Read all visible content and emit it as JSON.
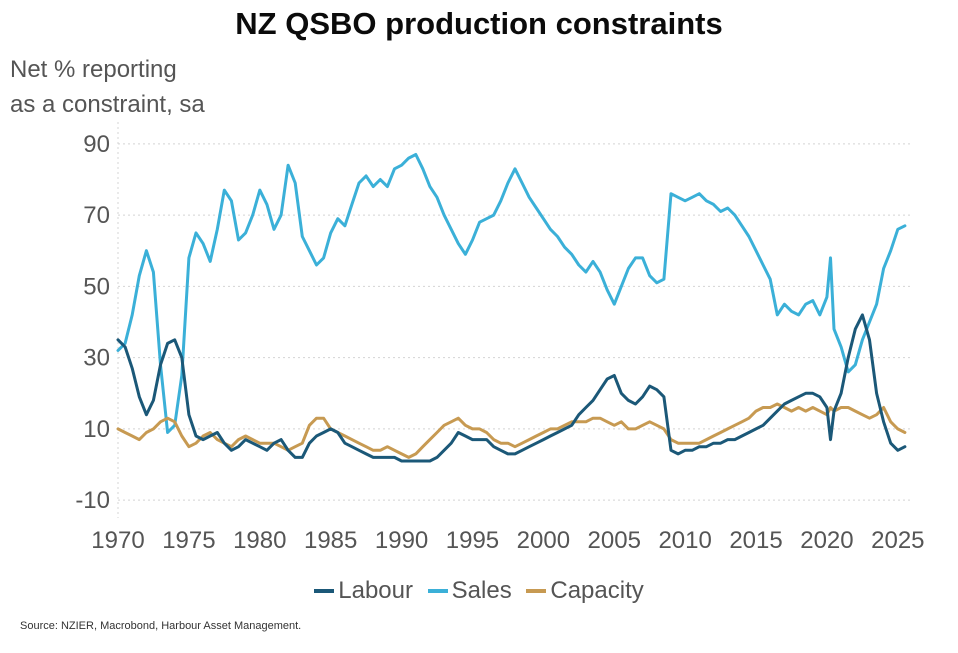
{
  "chart_data": {
    "type": "line",
    "title": "NZ QSBO production constraints",
    "ylabel_lines": [
      "Net % reporting",
      "as a constraint, sa"
    ],
    "ylim": [
      -15,
      95
    ],
    "yticks": [
      -10,
      10,
      30,
      50,
      70,
      90
    ],
    "xlim": [
      1970,
      2026
    ],
    "xticks": [
      1970,
      1975,
      1980,
      1985,
      1990,
      1995,
      2000,
      2005,
      2010,
      2015,
      2020,
      2025
    ],
    "grid": "horizontal dotted",
    "legend_position": "bottom",
    "series": [
      {
        "name": "Labour",
        "color": "#1b5878",
        "x": [
          1970.0,
          1970.5,
          1971.0,
          1971.5,
          1972.0,
          1972.5,
          1973.0,
          1973.5,
          1974.0,
          1974.5,
          1975.0,
          1975.5,
          1976.0,
          1976.5,
          1977.0,
          1977.5,
          1978.0,
          1978.5,
          1979.0,
          1979.5,
          1980.0,
          1980.5,
          1981.0,
          1981.5,
          1982.0,
          1982.5,
          1983.0,
          1983.5,
          1984.0,
          1984.5,
          1985.0,
          1985.5,
          1986.0,
          1986.5,
          1987.0,
          1987.5,
          1988.0,
          1988.5,
          1989.0,
          1989.5,
          1990.0,
          1990.5,
          1991.0,
          1991.5,
          1992.0,
          1992.5,
          1993.0,
          1993.5,
          1994.0,
          1994.5,
          1995.0,
          1995.5,
          1996.0,
          1996.5,
          1997.0,
          1997.5,
          1998.0,
          1998.5,
          1999.0,
          1999.5,
          2000.0,
          2000.5,
          2001.0,
          2001.5,
          2002.0,
          2002.5,
          2003.0,
          2003.5,
          2004.0,
          2004.5,
          2005.0,
          2005.5,
          2006.0,
          2006.5,
          2007.0,
          2007.5,
          2008.0,
          2008.5,
          2009.0,
          2009.5,
          2010.0,
          2010.5,
          2011.0,
          2011.5,
          2012.0,
          2012.5,
          2013.0,
          2013.5,
          2014.0,
          2014.5,
          2015.0,
          2015.5,
          2016.0,
          2016.5,
          2017.0,
          2017.5,
          2018.0,
          2018.5,
          2019.0,
          2019.5,
          2020.0,
          2020.25,
          2020.5,
          2021.0,
          2021.5,
          2022.0,
          2022.5,
          2023.0,
          2023.5,
          2024.0,
          2024.5,
          2025.0,
          2025.5
        ],
        "values": [
          35,
          33,
          27,
          19,
          14,
          18,
          28,
          34,
          35,
          30,
          14,
          8,
          7,
          8,
          9,
          6,
          4,
          5,
          7,
          6,
          5,
          4,
          6,
          7,
          4,
          2,
          2,
          6,
          8,
          9,
          10,
          9,
          6,
          5,
          4,
          3,
          2,
          2,
          2,
          2,
          1,
          1,
          1,
          1,
          1,
          2,
          4,
          6,
          9,
          8,
          7,
          7,
          7,
          5,
          4,
          3,
          3,
          4,
          5,
          6,
          7,
          8,
          9,
          10,
          11,
          14,
          16,
          18,
          21,
          24,
          25,
          20,
          18,
          17,
          19,
          22,
          21,
          19,
          4,
          3,
          4,
          4,
          5,
          5,
          6,
          6,
          7,
          7,
          8,
          9,
          10,
          11,
          13,
          15,
          17,
          18,
          19,
          20,
          20,
          19,
          16,
          7,
          15,
          20,
          30,
          38,
          42,
          35,
          20,
          12,
          6,
          4,
          5
        ]
      },
      {
        "name": "Sales",
        "color": "#3bb0d8",
        "x": [
          1970.0,
          1970.5,
          1971.0,
          1971.5,
          1972.0,
          1972.5,
          1973.0,
          1973.5,
          1974.0,
          1974.5,
          1975.0,
          1975.5,
          1976.0,
          1976.5,
          1977.0,
          1977.5,
          1978.0,
          1978.5,
          1979.0,
          1979.5,
          1980.0,
          1980.5,
          1981.0,
          1981.5,
          1982.0,
          1982.5,
          1983.0,
          1983.5,
          1984.0,
          1984.5,
          1985.0,
          1985.5,
          1986.0,
          1986.5,
          1987.0,
          1987.5,
          1988.0,
          1988.5,
          1989.0,
          1989.5,
          1990.0,
          1990.5,
          1991.0,
          1991.5,
          1992.0,
          1992.5,
          1993.0,
          1993.5,
          1994.0,
          1994.5,
          1995.0,
          1995.5,
          1996.0,
          1996.5,
          1997.0,
          1997.5,
          1998.0,
          1998.5,
          1999.0,
          1999.5,
          2000.0,
          2000.5,
          2001.0,
          2001.5,
          2002.0,
          2002.5,
          2003.0,
          2003.5,
          2004.0,
          2004.5,
          2005.0,
          2005.5,
          2006.0,
          2006.5,
          2007.0,
          2007.5,
          2008.0,
          2008.5,
          2009.0,
          2009.5,
          2010.0,
          2010.5,
          2011.0,
          2011.5,
          2012.0,
          2012.5,
          2013.0,
          2013.5,
          2014.0,
          2014.5,
          2015.0,
          2015.5,
          2016.0,
          2016.5,
          2017.0,
          2017.5,
          2018.0,
          2018.5,
          2019.0,
          2019.5,
          2020.0,
          2020.25,
          2020.5,
          2021.0,
          2021.5,
          2022.0,
          2022.5,
          2023.0,
          2023.5,
          2024.0,
          2024.5,
          2025.0,
          2025.5
        ],
        "values": [
          32,
          34,
          42,
          53,
          60,
          54,
          28,
          9,
          11,
          25,
          58,
          65,
          62,
          57,
          66,
          77,
          74,
          63,
          65,
          70,
          77,
          73,
          66,
          70,
          84,
          79,
          64,
          60,
          56,
          58,
          65,
          69,
          67,
          73,
          79,
          81,
          78,
          80,
          78,
          83,
          84,
          86,
          87,
          83,
          78,
          75,
          70,
          66,
          62,
          59,
          63,
          68,
          69,
          70,
          74,
          79,
          83,
          79,
          75,
          72,
          69,
          66,
          64,
          61,
          59,
          56,
          54,
          57,
          54,
          49,
          45,
          50,
          55,
          58,
          58,
          53,
          51,
          52,
          76,
          75,
          74,
          75,
          76,
          74,
          73,
          71,
          72,
          70,
          67,
          64,
          60,
          56,
          52,
          42,
          45,
          43,
          42,
          45,
          46,
          42,
          47,
          58,
          38,
          33,
          26,
          28,
          35,
          40,
          45,
          55,
          60,
          66,
          67
        ]
      },
      {
        "name": "Capacity",
        "color": "#c79a52",
        "x": [
          1970.0,
          1970.5,
          1971.0,
          1971.5,
          1972.0,
          1972.5,
          1973.0,
          1973.5,
          1974.0,
          1974.5,
          1975.0,
          1975.5,
          1976.0,
          1976.5,
          1977.0,
          1977.5,
          1978.0,
          1978.5,
          1979.0,
          1979.5,
          1980.0,
          1980.5,
          1981.0,
          1981.5,
          1982.0,
          1982.5,
          1983.0,
          1983.5,
          1984.0,
          1984.5,
          1985.0,
          1985.5,
          1986.0,
          1986.5,
          1987.0,
          1987.5,
          1988.0,
          1988.5,
          1989.0,
          1989.5,
          1990.0,
          1990.5,
          1991.0,
          1991.5,
          1992.0,
          1992.5,
          1993.0,
          1993.5,
          1994.0,
          1994.5,
          1995.0,
          1995.5,
          1996.0,
          1996.5,
          1997.0,
          1997.5,
          1998.0,
          1998.5,
          1999.0,
          1999.5,
          2000.0,
          2000.5,
          2001.0,
          2001.5,
          2002.0,
          2002.5,
          2003.0,
          2003.5,
          2004.0,
          2004.5,
          2005.0,
          2005.5,
          2006.0,
          2006.5,
          2007.0,
          2007.5,
          2008.0,
          2008.5,
          2009.0,
          2009.5,
          2010.0,
          2010.5,
          2011.0,
          2011.5,
          2012.0,
          2012.5,
          2013.0,
          2013.5,
          2014.0,
          2014.5,
          2015.0,
          2015.5,
          2016.0,
          2016.5,
          2017.0,
          2017.5,
          2018.0,
          2018.5,
          2019.0,
          2019.5,
          2020.0,
          2020.25,
          2020.5,
          2021.0,
          2021.5,
          2022.0,
          2022.5,
          2023.0,
          2023.5,
          2024.0,
          2024.5,
          2025.0,
          2025.5
        ],
        "values": [
          10,
          9,
          8,
          7,
          9,
          10,
          12,
          13,
          12,
          8,
          5,
          6,
          8,
          9,
          7,
          6,
          5,
          7,
          8,
          7,
          6,
          6,
          6,
          5,
          4,
          5,
          6,
          11,
          13,
          13,
          10,
          9,
          8,
          7,
          6,
          5,
          4,
          4,
          5,
          4,
          3,
          2,
          3,
          5,
          7,
          9,
          11,
          12,
          13,
          11,
          10,
          10,
          9,
          7,
          6,
          6,
          5,
          6,
          7,
          8,
          9,
          10,
          10,
          11,
          12,
          12,
          12,
          13,
          13,
          12,
          11,
          12,
          10,
          10,
          11,
          12,
          11,
          10,
          7,
          6,
          6,
          6,
          6,
          7,
          8,
          9,
          10,
          11,
          12,
          13,
          15,
          16,
          16,
          17,
          16,
          15,
          16,
          15,
          16,
          15,
          14,
          16,
          15,
          16,
          16,
          15,
          14,
          13,
          14,
          16,
          12,
          10,
          9
        ]
      }
    ]
  },
  "source_note": "Source: NZIER, Macrobond, Harbour Asset Management."
}
